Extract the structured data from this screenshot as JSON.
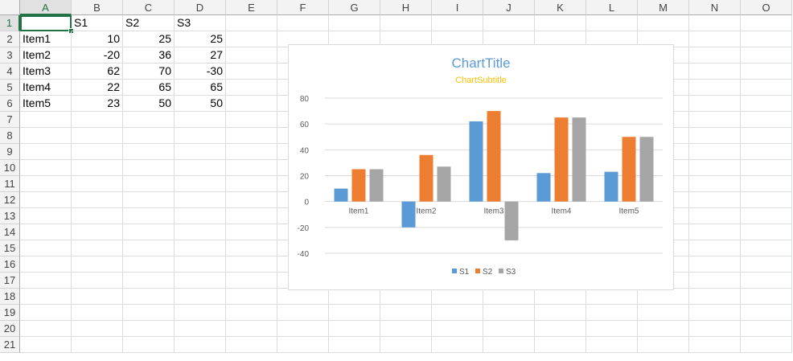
{
  "columns": [
    "A",
    "B",
    "C",
    "D",
    "E",
    "F",
    "G",
    "H",
    "I",
    "J",
    "K",
    "L",
    "M",
    "N",
    "O"
  ],
  "rows": [
    "1",
    "2",
    "3",
    "4",
    "5",
    "6",
    "7",
    "8",
    "9",
    "10",
    "11",
    "12",
    "13",
    "14",
    "15",
    "16",
    "17",
    "18",
    "19",
    "20",
    "21"
  ],
  "selected_cell": {
    "column": "A",
    "row": "1"
  },
  "cells": {
    "B1": "S1",
    "C1": "S2",
    "D1": "S3",
    "A2": "Item1",
    "B2": "10",
    "C2": "25",
    "D2": "25",
    "A3": "Item2",
    "B3": "-20",
    "C3": "36",
    "D3": "27",
    "A4": "Item3",
    "B4": "62",
    "C4": "70",
    "D4": "-30",
    "A5": "Item4",
    "B5": "22",
    "C5": "65",
    "D5": "65",
    "A6": "Item5",
    "B6": "23",
    "C6": "50",
    "D6": "50"
  },
  "colors": {
    "S1": "#5b9bd5",
    "S2": "#ed7d31",
    "S3": "#a5a5a5",
    "title": "#5b9bd5",
    "subtitle": "#ffc000",
    "accent": "#217346"
  },
  "chart_data": {
    "type": "bar",
    "title": "ChartTitle",
    "subtitle": "ChartSubtitle",
    "categories": [
      "Item1",
      "Item2",
      "Item3",
      "Item4",
      "Item5"
    ],
    "series": [
      {
        "name": "S1",
        "values": [
          10,
          -20,
          62,
          22,
          23
        ]
      },
      {
        "name": "S2",
        "values": [
          25,
          36,
          70,
          65,
          50
        ]
      },
      {
        "name": "S3",
        "values": [
          25,
          27,
          -30,
          65,
          50
        ]
      }
    ],
    "yticks": [
      "-40",
      "-20",
      "0",
      "20",
      "40",
      "60",
      "80"
    ],
    "ylim": [
      -40,
      80
    ],
    "grid": true,
    "legend": "bottom"
  }
}
